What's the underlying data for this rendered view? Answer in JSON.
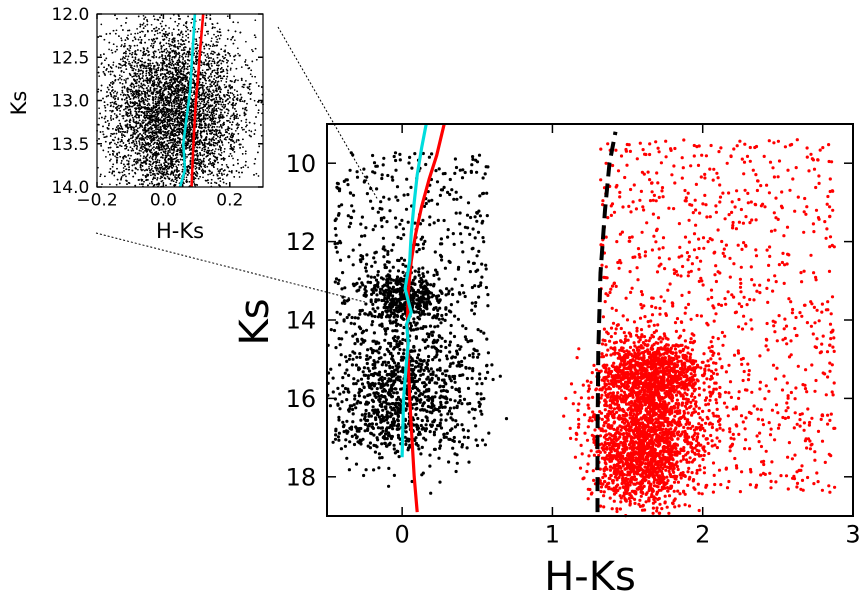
{
  "chart_data": [
    {
      "id": "main",
      "type": "scatter",
      "xlabel": "H-Ks",
      "ylabel": "Ks",
      "xlim": [
        -0.5,
        3.0
      ],
      "ylim": [
        19.0,
        9.0
      ],
      "y_inverted": true,
      "xticks": [
        0,
        1,
        2,
        3
      ],
      "xtick_labels": [
        "0",
        "1",
        "2",
        "3"
      ],
      "yticks": [
        10,
        12,
        14,
        16,
        18
      ],
      "ytick_labels": [
        "10",
        "12",
        "14",
        "16",
        "18"
      ],
      "grid": false,
      "series": [
        {
          "kind": "points",
          "color": "#000000",
          "clumps": [
            {
              "x_center": 0.02,
              "x_sigma": 0.13,
              "y_center": 13.4,
              "y_sigma": 0.35,
              "n": 450
            },
            {
              "x_center": 0.0,
              "x_sigma": 0.22,
              "y_center": 15.8,
              "y_sigma": 0.9,
              "n": 900
            }
          ],
          "spread": {
            "x_range": [
              -0.45,
              0.58
            ],
            "y_range": [
              9.7,
              17.3
            ],
            "n": 650
          }
        },
        {
          "kind": "points",
          "color": "#ff0000",
          "clumps": [
            {
              "x_center": 1.65,
              "x_sigma": 0.17,
              "y_center": 15.4,
              "y_sigma": 0.5,
              "n": 1100
            },
            {
              "x_center": 1.6,
              "x_sigma": 0.16,
              "y_center": 17.6,
              "y_sigma": 0.6,
              "n": 1000
            },
            {
              "x_center": 1.65,
              "x_sigma": 0.22,
              "y_center": 16.6,
              "y_sigma": 0.55,
              "n": 700
            }
          ],
          "spread": {
            "x_range": [
              1.32,
              2.88
            ],
            "y_range": [
              9.4,
              18.4
            ],
            "n": 1000
          }
        },
        {
          "kind": "line",
          "color": "#ff0000",
          "style": "solid",
          "x": [
            0.1,
            0.08,
            0.065,
            0.05,
            0.04,
            0.035,
            0.04,
            0.06,
            0.09,
            0.13,
            0.18,
            0.23,
            0.28
          ],
          "y": [
            18.9,
            18.0,
            17.0,
            16.0,
            15.0,
            14.2,
            13.3,
            12.5,
            11.8,
            11.1,
            10.4,
            9.8,
            9.0
          ]
        },
        {
          "kind": "line",
          "color": "#00dddd",
          "style": "solid",
          "x": [
            0.0,
            0.01,
            0.03,
            0.04,
            0.03,
            0.06,
            0.02,
            0.05,
            0.06,
            0.08,
            0.1,
            0.13,
            0.16
          ],
          "y": [
            17.5,
            16.0,
            15.0,
            14.6,
            14.1,
            13.8,
            13.2,
            12.5,
            11.8,
            11.0,
            10.3,
            9.6,
            9.0
          ]
        },
        {
          "kind": "line",
          "color": "#000000",
          "style": "dashed",
          "x": [
            1.3,
            1.3,
            1.305,
            1.32,
            1.35,
            1.38,
            1.42
          ],
          "y": [
            18.9,
            17.0,
            14.8,
            12.8,
            11.2,
            10.0,
            9.2
          ]
        }
      ]
    },
    {
      "id": "inset",
      "type": "scatter",
      "xlabel": "H-Ks",
      "ylabel": "Ks",
      "xlim": [
        -0.2,
        0.3
      ],
      "ylim": [
        14.0,
        12.0
      ],
      "y_inverted": true,
      "xticks": [
        -0.2,
        0.0,
        0.2
      ],
      "xtick_labels": [
        "−0.2",
        "0.0",
        "0.2"
      ],
      "yticks": [
        12.0,
        12.5,
        13.0,
        13.5,
        14.0
      ],
      "ytick_labels": [
        "12.0",
        "12.5",
        "13.0",
        "13.5",
        "14.0"
      ],
      "series": [
        {
          "kind": "density",
          "color": "#000000",
          "x_center": 0.03,
          "x_sigma": 0.09,
          "y_center": 13.15,
          "y_sigma": 0.4,
          "n": 9000
        },
        {
          "kind": "line",
          "color": "#00dddd",
          "style": "solid",
          "x": [
            0.05,
            0.065,
            0.06,
            0.07,
            0.08,
            0.085,
            0.09,
            0.095
          ],
          "y": [
            14.0,
            13.8,
            13.5,
            13.2,
            12.9,
            12.6,
            12.3,
            12.0
          ]
        },
        {
          "kind": "line",
          "color": "#ff0000",
          "style": "solid",
          "x": [
            0.085,
            0.088,
            0.092,
            0.098,
            0.105,
            0.112,
            0.12
          ],
          "y": [
            14.0,
            13.7,
            13.4,
            13.0,
            12.7,
            12.35,
            12.0
          ]
        }
      ]
    }
  ]
}
